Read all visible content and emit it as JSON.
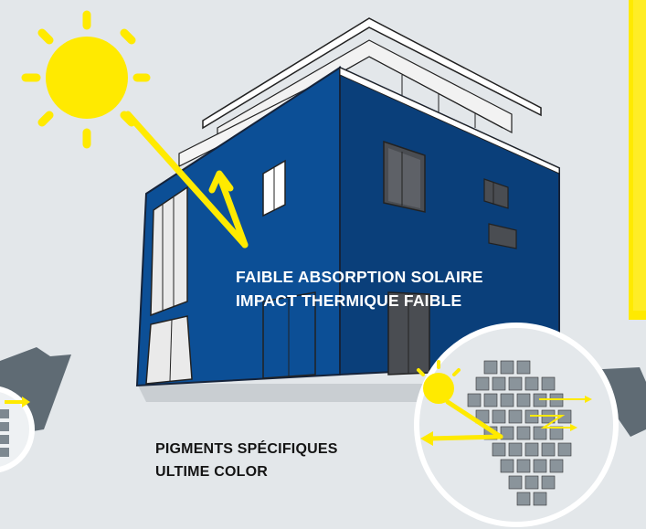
{
  "house_caption": {
    "line1": "FAIBLE ABSORPTION SOLAIRE",
    "line2": "IMPACT THERMIQUE FAIBLE"
  },
  "pigment_caption": {
    "line1": "PIGMENTS SPÉCIFIQUES",
    "line2": "ULTIME COLOR"
  },
  "colors": {
    "background": "#e3e7ea",
    "facade_blue": "#0c4f96",
    "facade_dark_blue": "#0a3f7a",
    "sun_yellow": "#ffea00",
    "panel_yellow": "#ffea00",
    "shadow_gray": "#5f6b74"
  }
}
